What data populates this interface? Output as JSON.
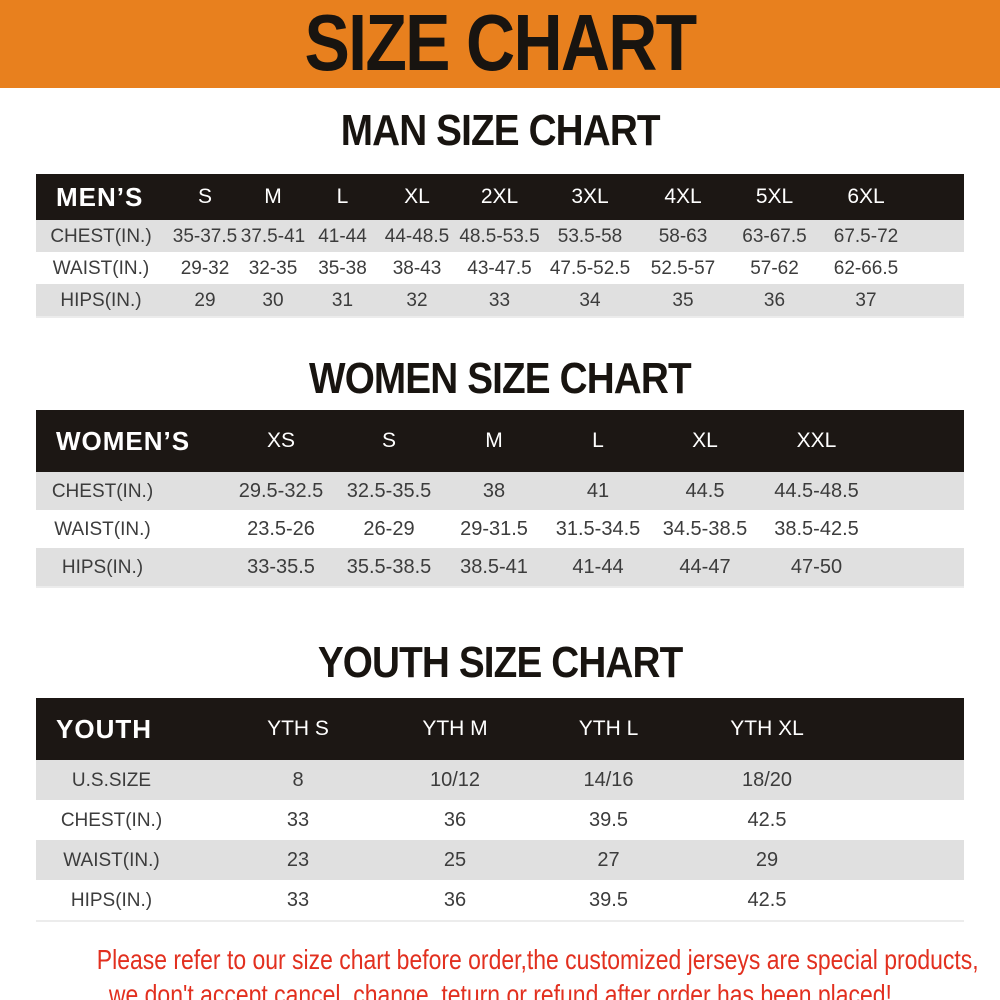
{
  "banner": {
    "title": "SIZE CHART"
  },
  "sections": [
    {
      "id": "man",
      "heading": "MAN SIZE CHART",
      "table": {
        "corner_label": "MEN’S",
        "size_columns": [
          "S",
          "M",
          "L",
          "XL",
          "2XL",
          "3XL",
          "4XL",
          "5XL",
          "6XL"
        ],
        "rows": [
          {
            "label": "CHEST(IN.)",
            "values": [
              "35-37.5",
              "37.5-41",
              "41-44",
              "44-48.5",
              "48.5-53.5",
              "53.5-58",
              "58-63",
              "63-67.5",
              "67.5-72"
            ]
          },
          {
            "label": "WAIST(IN.)",
            "values": [
              "29-32",
              "32-35",
              "35-38",
              "38-43",
              "43-47.5",
              "47.5-52.5",
              "52.5-57",
              "57-62",
              "62-66.5"
            ]
          },
          {
            "label": "HIPS(IN.)",
            "values": [
              "29",
              "30",
              "31",
              "32",
              "33",
              "34",
              "35",
              "36",
              "37"
            ]
          }
        ]
      }
    },
    {
      "id": "women",
      "heading": "WOMEN SIZE CHART",
      "table": {
        "corner_label": "WOMEN’S",
        "size_columns": [
          "XS",
          "S",
          "M",
          "L",
          "XL",
          "XXL"
        ],
        "rows": [
          {
            "label": "CHEST(IN.)",
            "values": [
              "29.5-32.5",
              "32.5-35.5",
              "38",
              "41",
              "44.5",
              "44.5-48.5"
            ]
          },
          {
            "label": "WAIST(IN.)",
            "values": [
              "23.5-26",
              "26-29",
              "29-31.5",
              "31.5-34.5",
              "34.5-38.5",
              "38.5-42.5"
            ]
          },
          {
            "label": "HIPS(IN.)",
            "values": [
              "33-35.5",
              "35.5-38.5",
              "38.5-41",
              "41-44",
              "44-47",
              "47-50"
            ]
          }
        ]
      }
    },
    {
      "id": "youth",
      "heading": "YOUTH SIZE CHART",
      "table": {
        "corner_label": "YOUTH",
        "size_columns": [
          "YTH S",
          "YTH M",
          "YTH L",
          "YTH XL"
        ],
        "rows": [
          {
            "label": "U.S.SIZE",
            "values": [
              "8",
              "10/12",
              "14/16",
              "18/20"
            ]
          },
          {
            "label": "CHEST(IN.)",
            "values": [
              "33",
              "36",
              "39.5",
              "42.5"
            ]
          },
          {
            "label": "WAIST(IN.)",
            "values": [
              "23",
              "25",
              "27",
              "29"
            ]
          },
          {
            "label": "HIPS(IN.)",
            "values": [
              "33",
              "36",
              "39.5",
              "42.5"
            ]
          }
        ]
      }
    }
  ],
  "footer": {
    "line1": "Please refer to our size chart before order,the customized jerseys are special products,",
    "line2": "we don't accept cancel, change, teturn or refund after order has been placed!"
  },
  "colors": {
    "banner_orange": "#E8801E",
    "table_header_black": "#1C1714",
    "row_shade_gray": "#E0E0E0",
    "footer_red": "#E2301F",
    "data_text": "#3C3C3C"
  }
}
